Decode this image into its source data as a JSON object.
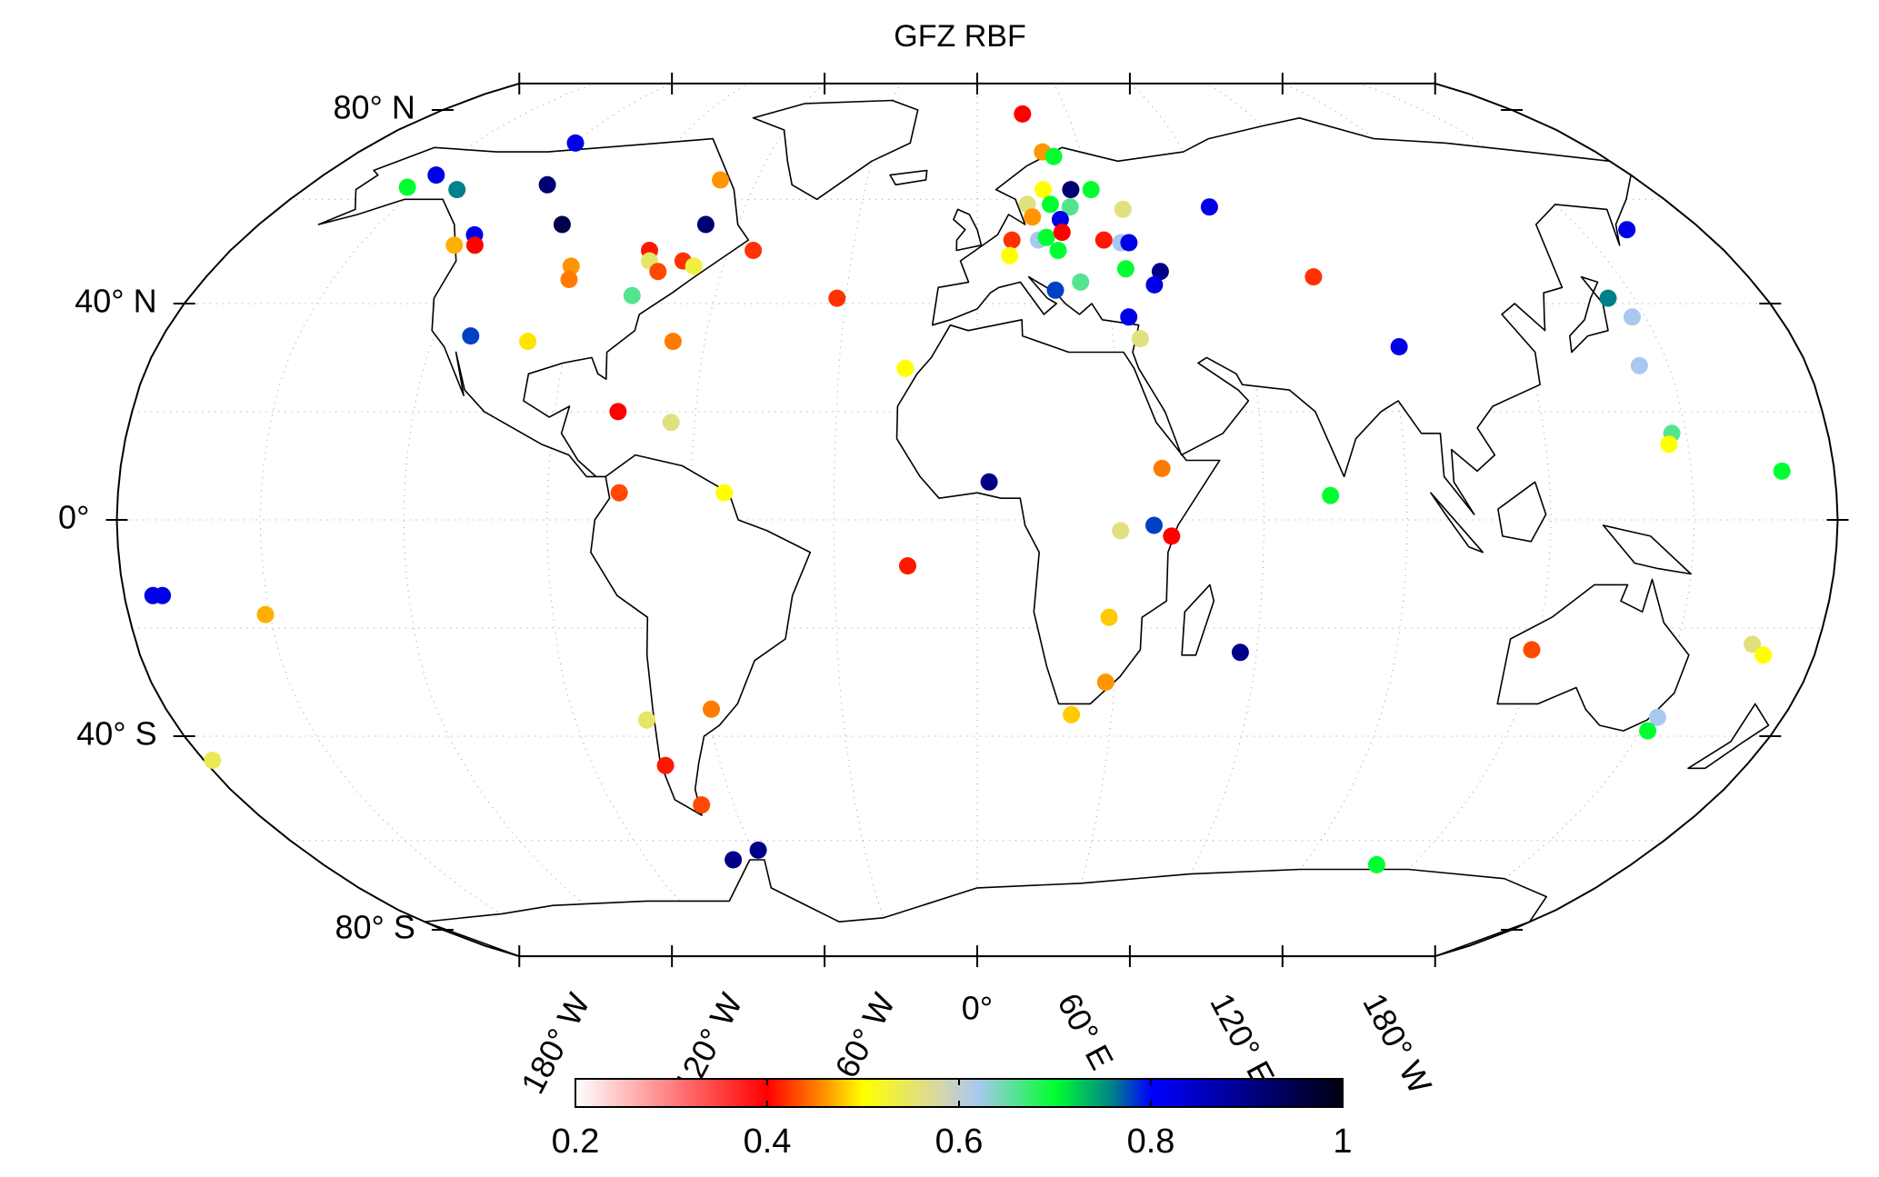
{
  "chart_data": {
    "type": "scatter-map",
    "title": "GFZ RBF",
    "projection": "robinson",
    "xlim": [
      -180,
      180
    ],
    "ylim": [
      -90,
      90
    ],
    "xticks": [
      {
        "value": -180,
        "label": "180° W"
      },
      {
        "value": -120,
        "label": "120° W"
      },
      {
        "value": -60,
        "label": "60° W"
      },
      {
        "value": 0,
        "label": "0°"
      },
      {
        "value": 60,
        "label": "60° E"
      },
      {
        "value": 120,
        "label": "120° E"
      },
      {
        "value": 180,
        "label": "180° W"
      }
    ],
    "yticks": [
      {
        "value": 80,
        "label": "80° N"
      },
      {
        "value": 40,
        "label": "40° N"
      },
      {
        "value": 0,
        "label": "0°"
      },
      {
        "value": -40,
        "label": "40° S"
      },
      {
        "value": -80,
        "label": "80° S"
      }
    ],
    "colorbar": {
      "clim": [
        0.2,
        1
      ],
      "ticks": [
        0.2,
        0.4,
        0.6,
        0.8,
        1
      ],
      "colormap": [
        {
          "value": 0.2,
          "color": "#ffffff"
        },
        {
          "value": 0.4,
          "color": "#ff0000"
        },
        {
          "value": 0.45,
          "color": "#ff7a00"
        },
        {
          "value": 0.5,
          "color": "#ffff00"
        },
        {
          "value": 0.58,
          "color": "#d6d6a8"
        },
        {
          "value": 0.62,
          "color": "#a8c8f0"
        },
        {
          "value": 0.7,
          "color": "#00ff30"
        },
        {
          "value": 0.76,
          "color": "#00808a"
        },
        {
          "value": 0.8,
          "color": "#0000ff"
        },
        {
          "value": 1,
          "color": "#000010"
        }
      ]
    },
    "lon": [
      15,
      -120,
      -149,
      -153,
      -139,
      -116,
      -104,
      -124,
      -127,
      -122,
      -68,
      -70,
      -79,
      -78,
      -75,
      -70,
      -67,
      -54,
      -96,
      -95,
      -79,
      -112,
      -99,
      -67,
      -32,
      -76.5,
      -65,
      -75,
      -53,
      -174,
      -172,
      -151,
      -178,
      -15.6,
      -14.6,
      -74,
      -59,
      -73,
      -68,
      -66.5,
      -58.5,
      110,
      19,
      22,
      17.6,
      25,
      30.4,
      13,
      19,
      24,
      14,
      37.5,
      21,
      8.5,
      15,
      17,
      21,
      31,
      35,
      37,
      7.8,
      19.5,
      18,
      24,
      35,
      43,
      41,
      34,
      36,
      60,
      78.5,
      92.6,
      161.5,
      144,
      147,
      143.7,
      147,
      146,
      169,
      74,
      2.5,
      38.8,
      30,
      37,
      40.7,
      28,
      28,
      21,
      56.5,
      119,
      166,
      169,
      152,
      151.5
    ],
    "lat": [
      79,
      72,
      65,
      62.5,
      62,
      63,
      55,
      53,
      51,
      51,
      55,
      64,
      50,
      48,
      46,
      48,
      47,
      50,
      47,
      44.5,
      41.5,
      34,
      33,
      33,
      41,
      20,
      18,
      5,
      5,
      -14,
      -14,
      -17.5,
      -44.5,
      28,
      -8.5,
      -37,
      -35,
      -45.5,
      -53,
      -64,
      -62,
      -65,
      70,
      69,
      62,
      62,
      62,
      59,
      59,
      58.5,
      56.5,
      58,
      56,
      52,
      52,
      52.5,
      53.5,
      52,
      51.5,
      51.5,
      49,
      50,
      42.5,
      44,
      46.5,
      46,
      43.5,
      37.5,
      33.5,
      58.5,
      45,
      32,
      54,
      41,
      37.5,
      28.5,
      16,
      14,
      9,
      4.5,
      7,
      9.5,
      -2,
      -1,
      -3,
      -18,
      -30,
      -36,
      -24.5,
      -24,
      -23,
      -25,
      -36.5,
      -39
    ],
    "values": [
      0.4,
      0.82,
      0.82,
      0.7,
      0.76,
      0.92,
      0.95,
      0.82,
      0.47,
      0.4,
      0.92,
      0.46,
      0.41,
      0.55,
      0.43,
      0.42,
      0.53,
      0.42,
      0.46,
      0.45,
      0.66,
      0.78,
      0.49,
      0.45,
      0.42,
      0.4,
      0.56,
      0.43,
      0.5,
      0.82,
      0.82,
      0.47,
      0.54,
      0.5,
      0.41,
      0.55,
      0.45,
      0.41,
      0.43,
      0.9,
      0.9,
      0.7,
      0.46,
      0.7,
      0.5,
      0.92,
      0.7,
      0.56,
      0.7,
      0.66,
      0.46,
      0.56,
      0.82,
      0.42,
      0.62,
      0.7,
      0.4,
      0.41,
      0.62,
      0.82,
      0.5,
      0.7,
      0.78,
      0.66,
      0.7,
      0.9,
      0.82,
      0.82,
      0.56,
      0.82,
      0.42,
      0.82,
      0.82,
      0.76,
      0.62,
      0.62,
      0.66,
      0.5,
      0.7,
      0.7,
      0.9,
      0.45,
      0.56,
      0.78,
      0.4,
      0.48,
      0.46,
      0.48,
      0.9,
      0.43,
      0.56,
      0.5,
      0.62,
      0.7
    ]
  }
}
